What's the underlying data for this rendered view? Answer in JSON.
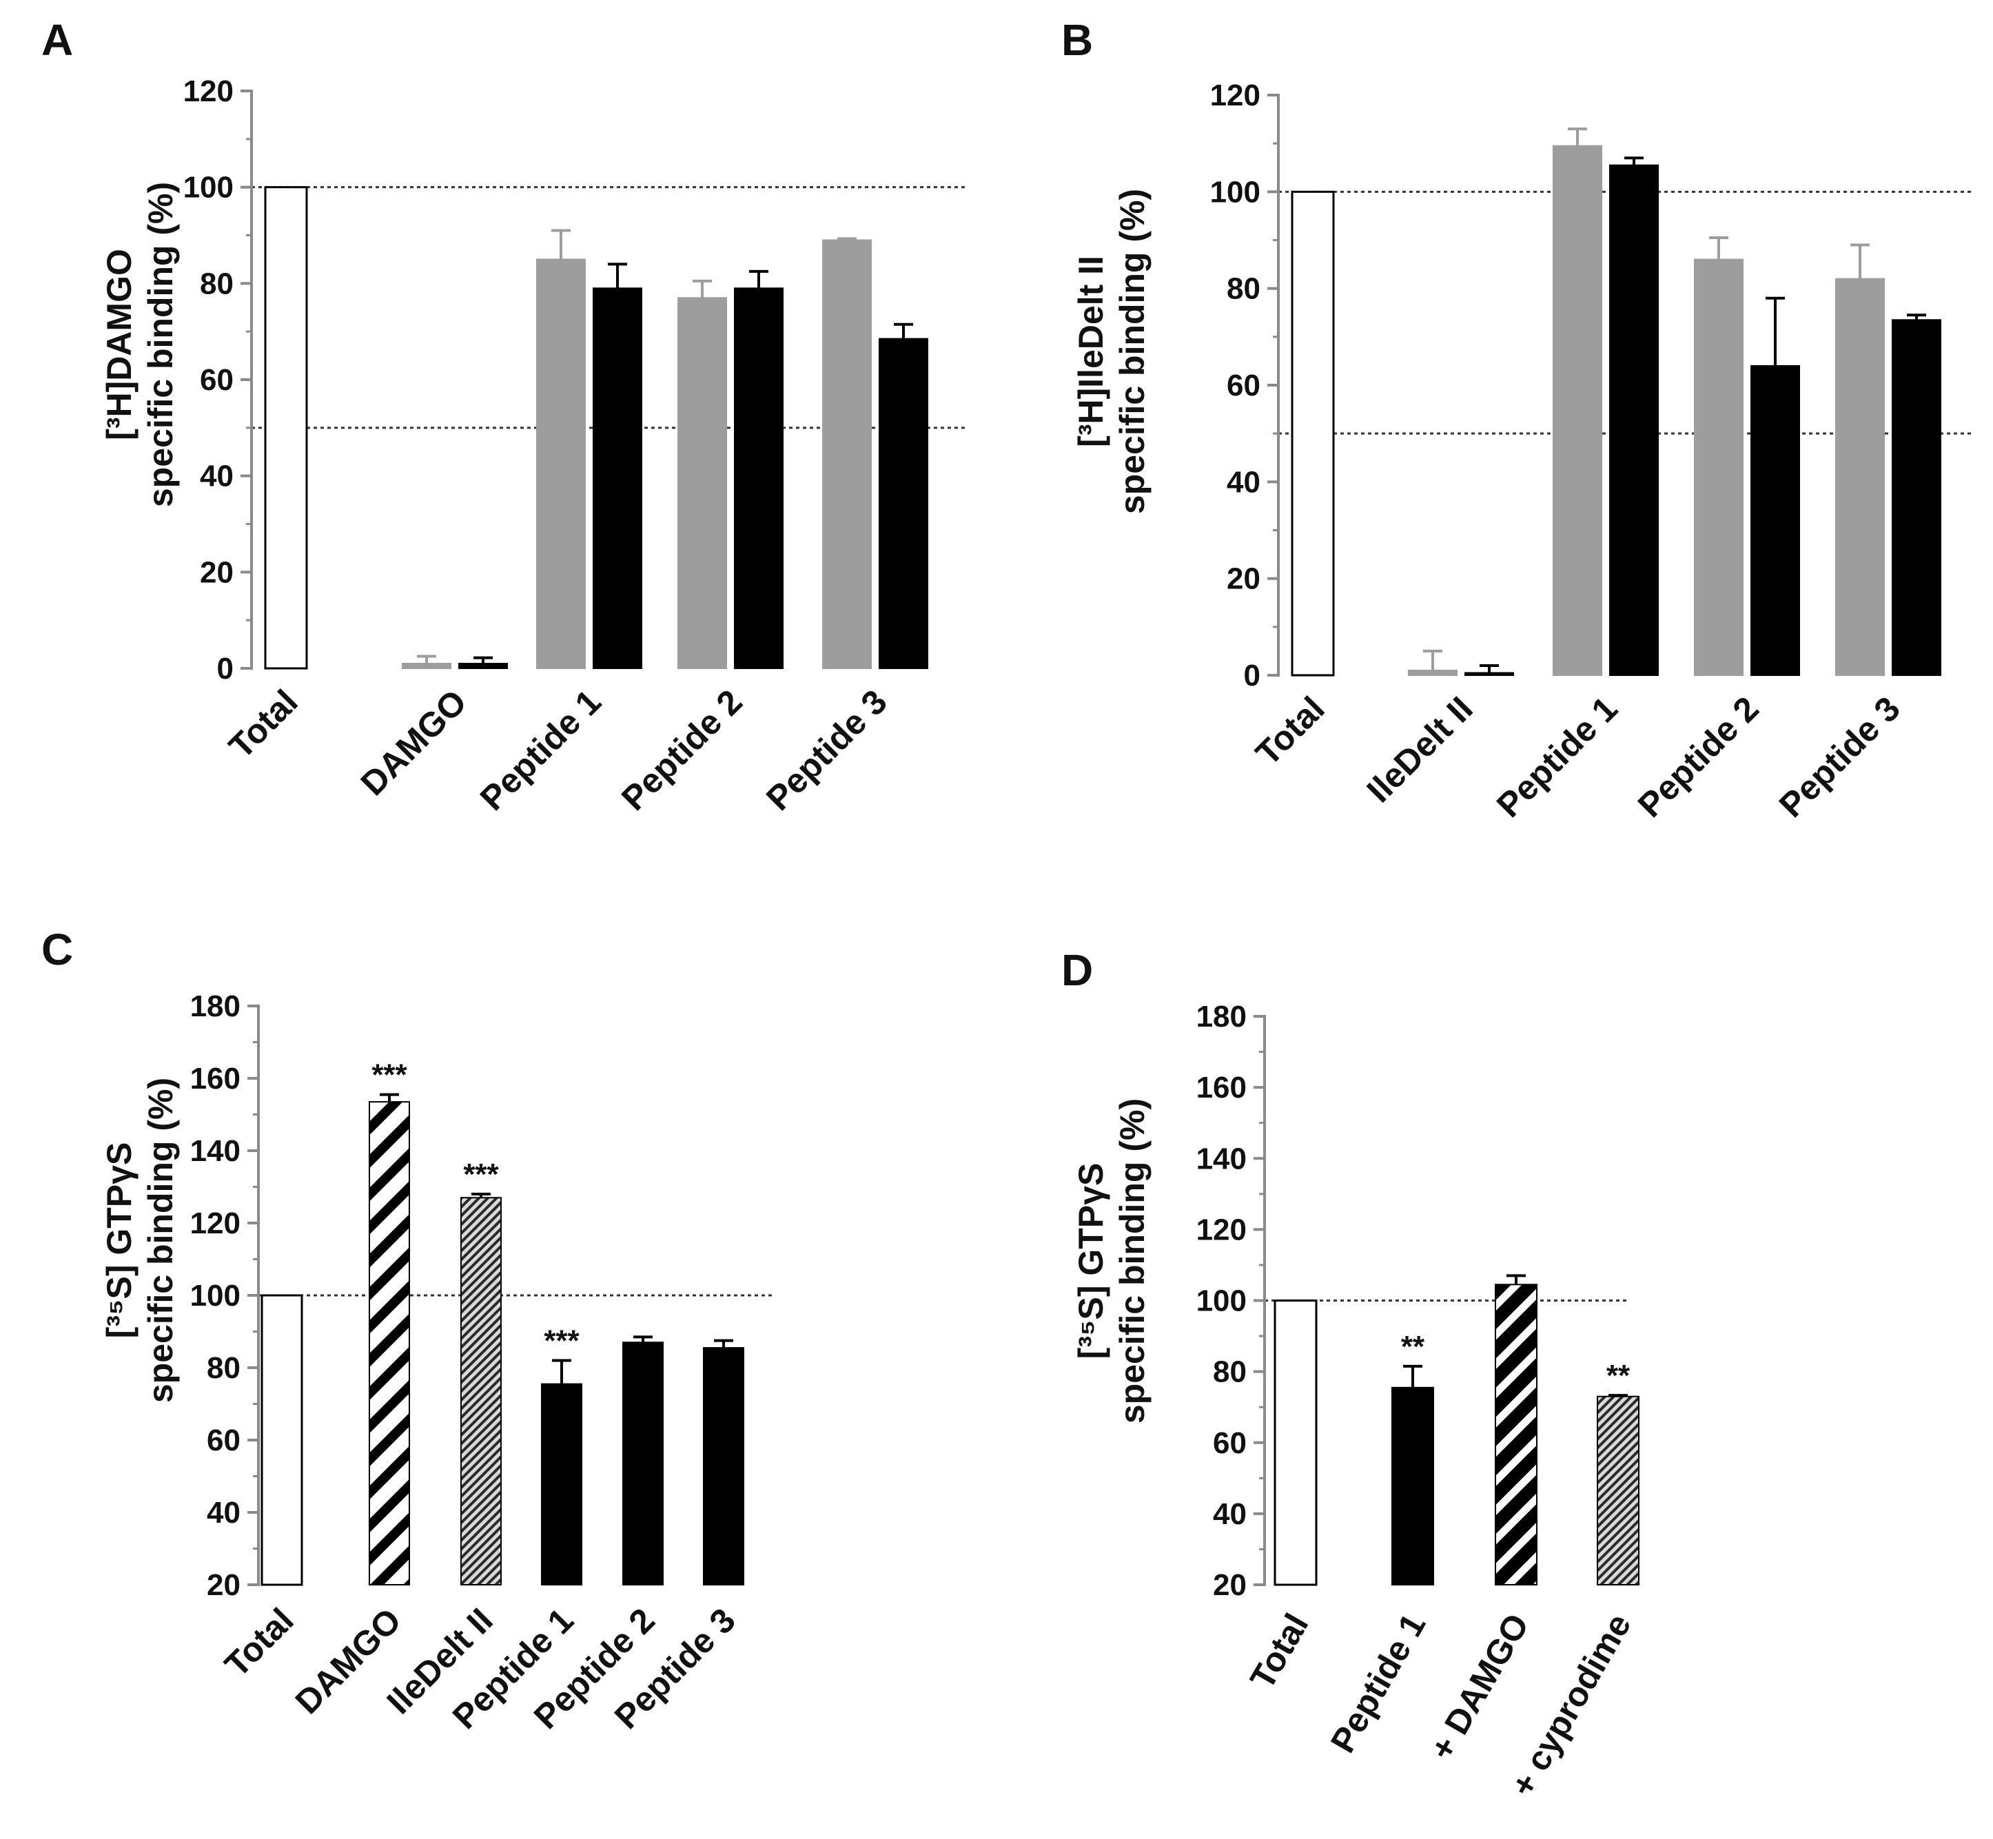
{
  "figure": {
    "colors": {
      "gray": "#9d9d9d",
      "black": "#000000",
      "white": "#ffffff",
      "axis": "#8a8a8a"
    }
  },
  "chart_data": [
    {
      "id": "A",
      "letter": "A",
      "type": "bar",
      "ylabel_line1": "[³H]DAMGO",
      "ylabel_line2": "specific binding (%)",
      "ylim": [
        0,
        120
      ],
      "ticks": [
        0,
        20,
        40,
        60,
        80,
        100,
        120
      ],
      "ref_lines": [
        100,
        50
      ],
      "categories": [
        "Total",
        "DAMGO",
        "Peptide 1",
        "Peptide 2",
        "Peptide 3"
      ],
      "bars": [
        {
          "cat": 0,
          "slot": "single",
          "value": 100,
          "err": 0,
          "fill": "white"
        },
        {
          "cat": 1,
          "slot": "left",
          "value": 1,
          "err": 1.5,
          "fill": "gray"
        },
        {
          "cat": 1,
          "slot": "right",
          "value": 1,
          "err": 1.2,
          "fill": "black"
        },
        {
          "cat": 2,
          "slot": "left",
          "value": 85,
          "err": 6,
          "fill": "gray"
        },
        {
          "cat": 2,
          "slot": "right",
          "value": 79,
          "err": 5,
          "fill": "black"
        },
        {
          "cat": 3,
          "slot": "left",
          "value": 77,
          "err": 3.5,
          "fill": "gray"
        },
        {
          "cat": 3,
          "slot": "right",
          "value": 79,
          "err": 3.5,
          "fill": "black"
        },
        {
          "cat": 4,
          "slot": "left",
          "value": 89,
          "err": 0.3,
          "fill": "gray"
        },
        {
          "cat": 4,
          "slot": "right",
          "value": 68.5,
          "err": 3,
          "fill": "black"
        }
      ]
    },
    {
      "id": "B",
      "letter": "B",
      "type": "bar",
      "ylabel_line1": "[³H]IleDelt II",
      "ylabel_line2": "specific binding (%)",
      "ylim": [
        0,
        120
      ],
      "ticks": [
        0,
        20,
        40,
        60,
        80,
        100,
        120
      ],
      "ref_lines": [
        100,
        50
      ],
      "categories": [
        "Total",
        "IleDelt II",
        "Peptide 1",
        "Peptide 2",
        "Peptide 3"
      ],
      "bars": [
        {
          "cat": 0,
          "slot": "single",
          "value": 100,
          "err": 0,
          "fill": "white"
        },
        {
          "cat": 1,
          "slot": "left",
          "value": 1,
          "err": 4,
          "fill": "gray"
        },
        {
          "cat": 1,
          "slot": "right",
          "value": 0.5,
          "err": 1.5,
          "fill": "black"
        },
        {
          "cat": 2,
          "slot": "left",
          "value": 109.5,
          "err": 3.5,
          "fill": "gray"
        },
        {
          "cat": 2,
          "slot": "right",
          "value": 105.5,
          "err": 1.5,
          "fill": "black"
        },
        {
          "cat": 3,
          "slot": "left",
          "value": 86,
          "err": 4.5,
          "fill": "gray"
        },
        {
          "cat": 3,
          "slot": "right",
          "value": 64,
          "err": 14,
          "fill": "black"
        },
        {
          "cat": 4,
          "slot": "left",
          "value": 82,
          "err": 7,
          "fill": "gray"
        },
        {
          "cat": 4,
          "slot": "right",
          "value": 73.5,
          "err": 1,
          "fill": "black"
        }
      ]
    },
    {
      "id": "C",
      "letter": "C",
      "type": "bar",
      "ylabel_line1": "[³⁵S] GTPγS",
      "ylabel_line2": "specific binding (%)",
      "ylim": [
        20,
        180
      ],
      "ticks": [
        20,
        40,
        60,
        80,
        100,
        120,
        140,
        160,
        180
      ],
      "ref_lines": [
        100
      ],
      "categories": [
        "Total",
        "DAMGO",
        "IleDelt II",
        "Peptide 1",
        "Peptide 2",
        "Peptide 3"
      ],
      "bars": [
        {
          "cat": 0,
          "slot": "single",
          "value": 100,
          "err": 0,
          "fill": "white",
          "star": ""
        },
        {
          "cat": 1,
          "slot": "single",
          "value": 153.5,
          "err": 2,
          "fill": "hatch-wide",
          "star": "***"
        },
        {
          "cat": 2,
          "slot": "single",
          "value": 127,
          "err": 1,
          "fill": "hatch-fine",
          "star": "***"
        },
        {
          "cat": 3,
          "slot": "single",
          "value": 75.5,
          "err": 6.5,
          "fill": "black",
          "star": "***"
        },
        {
          "cat": 4,
          "slot": "single",
          "value": 87,
          "err": 1.5,
          "fill": "black",
          "star": ""
        },
        {
          "cat": 5,
          "slot": "single",
          "value": 85.5,
          "err": 2,
          "fill": "black",
          "star": ""
        }
      ]
    },
    {
      "id": "D",
      "letter": "D",
      "type": "bar",
      "ylabel_line1": "[³⁵S] GTPγS",
      "ylabel_line2": "specific binding (%)",
      "ylim": [
        20,
        180
      ],
      "ticks": [
        20,
        40,
        60,
        80,
        100,
        120,
        140,
        160,
        180
      ],
      "ref_lines": [
        100
      ],
      "categories": [
        "Total",
        "Peptide 1",
        "+ DAMGO",
        "+ cyprodime"
      ],
      "bars": [
        {
          "cat": 0,
          "slot": "single",
          "value": 100,
          "err": 0,
          "fill": "white",
          "star": ""
        },
        {
          "cat": 1,
          "slot": "single",
          "value": 75.5,
          "err": 6,
          "fill": "black",
          "star": "**"
        },
        {
          "cat": 2,
          "slot": "single",
          "value": 104.5,
          "err": 2.5,
          "fill": "hatch-wide-dark",
          "star": ""
        },
        {
          "cat": 3,
          "slot": "single",
          "value": 73,
          "err": 0.3,
          "fill": "hatch-fine",
          "star": "**"
        }
      ]
    }
  ]
}
